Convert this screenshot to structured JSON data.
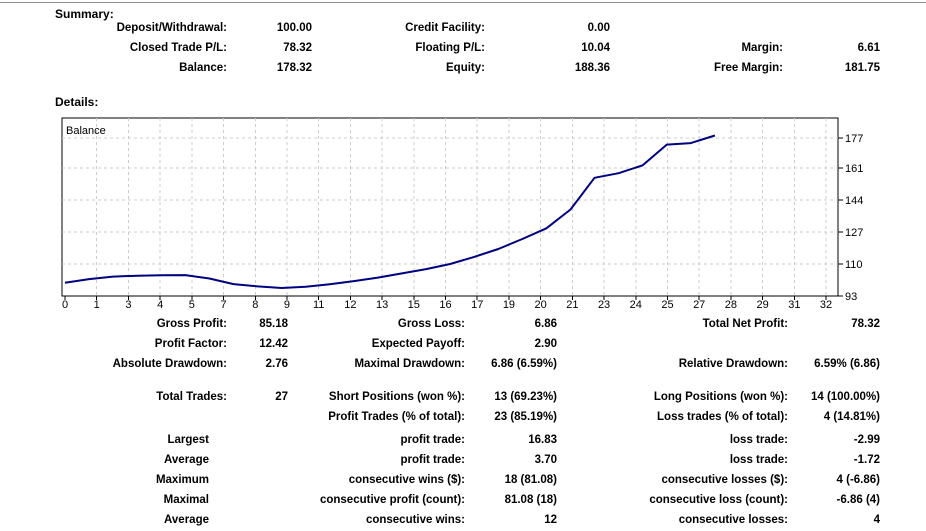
{
  "report": {
    "summary_heading": "Summary:",
    "details_heading": "Details:"
  },
  "summary": {
    "rows": [
      [
        "Deposit/Withdrawal:",
        "100.00",
        "Credit Facility:",
        "0.00",
        "",
        ""
      ],
      [
        "Closed Trade P/L:",
        "78.32",
        "Floating P/L:",
        "10.04",
        "Margin:",
        "6.61"
      ],
      [
        "Balance:",
        "178.32",
        "Equity:",
        "188.36",
        "Free Margin:",
        "181.75"
      ]
    ]
  },
  "stats": {
    "groups": [
      {
        "rows": [
          [
            "Gross Profit:",
            "85.18",
            "Gross Loss:",
            "6.86",
            "Total Net Profit:",
            "78.32"
          ],
          [
            "Profit Factor:",
            "12.42",
            "Expected Payoff:",
            "2.90",
            "",
            ""
          ],
          [
            "Absolute Drawdown:",
            "2.76",
            "Maximal Drawdown:",
            "6.86 (6.59%)",
            "Relative Drawdown:",
            "6.59% (6.86)"
          ]
        ]
      },
      {
        "rows": [
          [
            "Total Trades:",
            "27",
            "Short Positions (won %):",
            "13 (69.23%)",
            "Long Positions (won %):",
            "14 (100.00%)"
          ],
          [
            "",
            "",
            "Profit Trades (% of total):",
            "23 (85.19%)",
            "Loss trades (% of total):",
            "4 (14.81%)"
          ]
        ]
      },
      {
        "rows": [
          [
            "Largest",
            "",
            "profit trade:",
            "16.83",
            "loss trade:",
            "-2.99"
          ],
          [
            "Average",
            "",
            "profit trade:",
            "3.70",
            "loss trade:",
            "-1.72"
          ],
          [
            "Maximum",
            "",
            "consecutive wins ($):",
            "18 (81.08)",
            "consecutive losses ($):",
            "4 (-6.86)"
          ],
          [
            "Maximal",
            "",
            "consecutive profit (count):",
            "81.08 (18)",
            "consecutive loss (count):",
            "-6.86 (4)"
          ],
          [
            "Average",
            "",
            "consecutive wins:",
            "12",
            "consecutive losses:",
            "4"
          ]
        ]
      }
    ]
  },
  "chart_data": {
    "type": "line",
    "title": "Balance",
    "xlabel": "",
    "ylabel": "",
    "x_tick_labels": [
      "0",
      "1",
      "3",
      "4",
      "5",
      "7",
      "8",
      "9",
      "11",
      "12",
      "13",
      "15",
      "16",
      "17",
      "19",
      "20",
      "21",
      "23",
      "24",
      "25",
      "27",
      "28",
      "29",
      "31",
      "32"
    ],
    "y_ticks": [
      93,
      110,
      127,
      144,
      161,
      177
    ],
    "ylim": [
      93,
      181
    ],
    "xlim": [
      0,
      32
    ],
    "grid": true,
    "legend_position": "top-left-inside",
    "series": [
      {
        "name": "Balance",
        "values": [
          100.0,
          102.0,
          103.3,
          103.8,
          104.0,
          104.1,
          102.3,
          99.31,
          98.11,
          97.24,
          97.9,
          99.3,
          100.9,
          102.8,
          105.0,
          107.3,
          110.0,
          113.8,
          118.0,
          123.3,
          129.0,
          139.0,
          155.83,
          158.3,
          162.5,
          173.5,
          174.3,
          178.32
        ]
      }
    ]
  },
  "colors": {
    "background": "#ffffff",
    "text": "#000000",
    "balance_line": "#000080",
    "grid": "#cccccc",
    "chart_border": "#000000",
    "top_separator": "#8f8f8f"
  }
}
